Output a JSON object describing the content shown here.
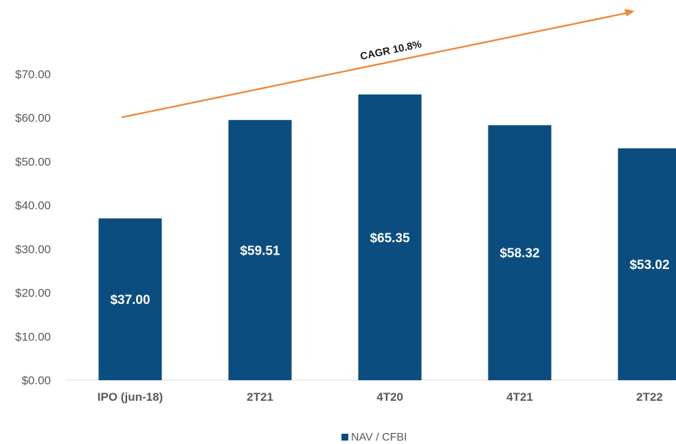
{
  "chart_data": {
    "type": "bar",
    "categories": [
      "IPO (jun-18)",
      "2T21",
      "4T20",
      "4T21",
      "2T22"
    ],
    "series": [
      {
        "name": "NAV / CFBI",
        "values": [
          37.0,
          59.51,
          65.35,
          58.32,
          53.02
        ],
        "color": "#0b4d7f"
      }
    ],
    "data_labels": [
      "$37.00",
      "$59.51",
      "$65.35",
      "$58.32",
      "$53.02"
    ],
    "ytick_labels": [
      "$0.00",
      "$10.00",
      "$20.00",
      "$30.00",
      "$40.00",
      "$50.00",
      "$60.00",
      "$70.00"
    ],
    "ylim": [
      0,
      70
    ],
    "grid": false,
    "legend_position": "bottom",
    "annotation": {
      "text": "CAGR 10.8%",
      "arrow_color": "#f08a3c"
    }
  }
}
